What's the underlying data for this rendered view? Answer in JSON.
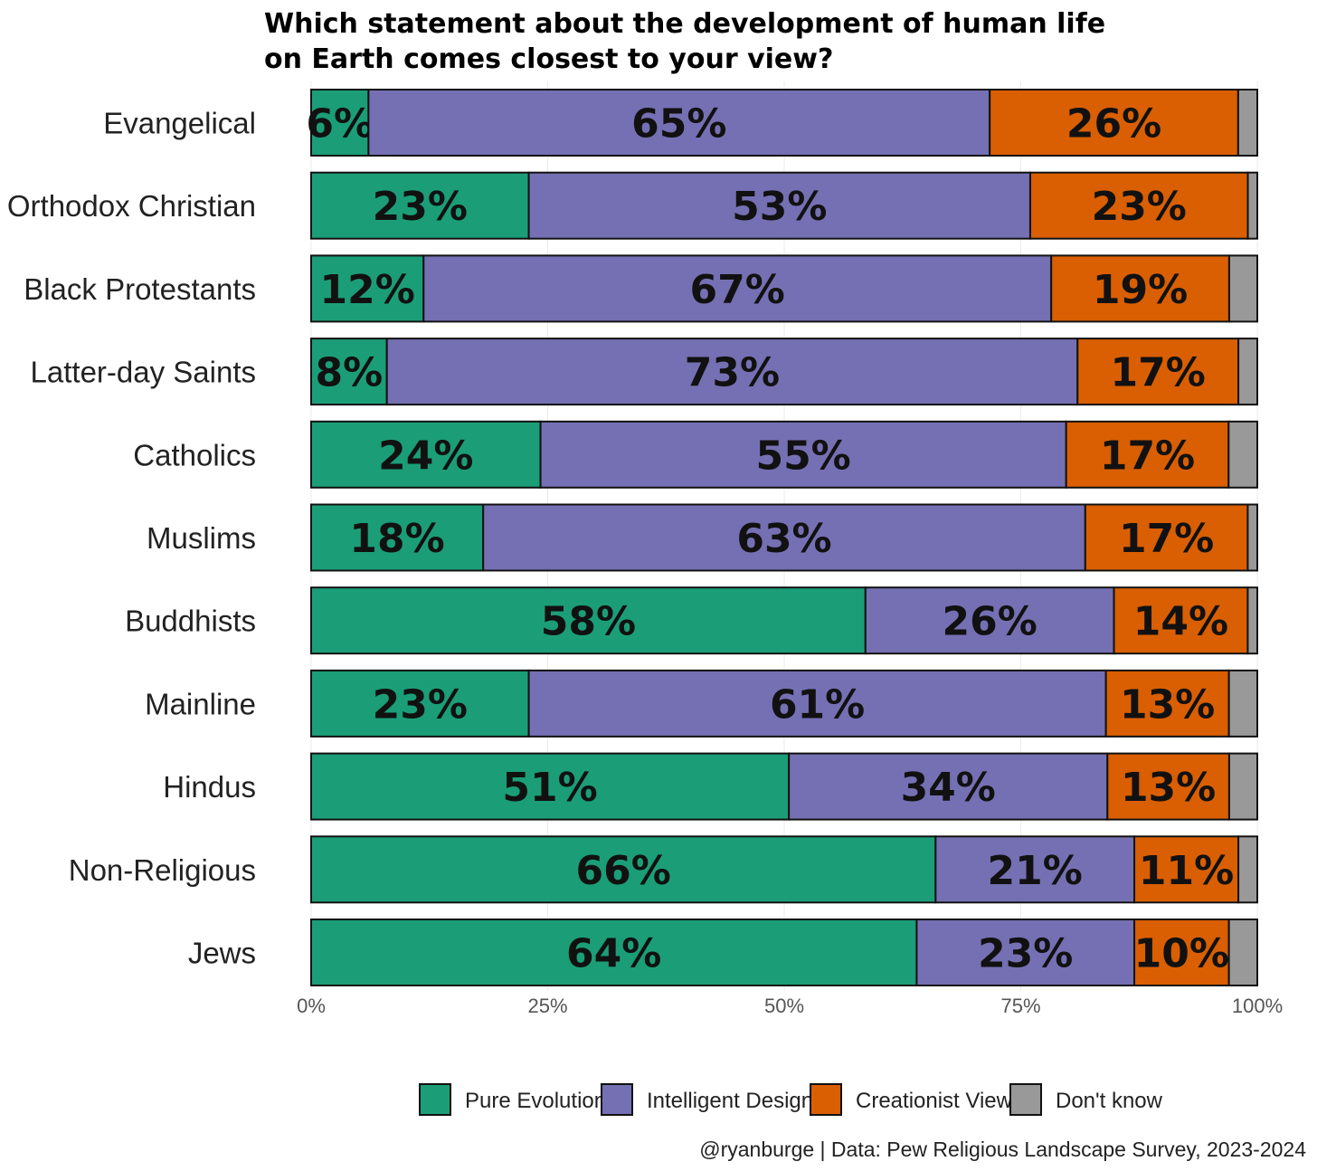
{
  "chart_data": {
    "type": "bar",
    "orientation": "horizontal",
    "stacked": true,
    "title_lines": [
      "Which statement about the development of human life",
      "on Earth comes closest to your view?"
    ],
    "categories": [
      "Evangelical",
      "Orthodox Christian",
      "Black Protestants",
      "Latter-day Saints",
      "Catholics",
      "Muslims",
      "Buddhists",
      "Mainline",
      "Hindus",
      "Non-Religious",
      "Jews"
    ],
    "series": [
      {
        "name": "Pure Evolution",
        "color": "#1b9e77",
        "values": [
          6,
          23,
          12,
          8,
          24,
          18,
          58,
          23,
          51,
          66,
          64
        ],
        "labels": [
          "6%",
          "23%",
          "12%",
          "8%",
          "24%",
          "18%",
          "58%",
          "23%",
          "51%",
          "66%",
          "64%"
        ]
      },
      {
        "name": "Intelligent Design",
        "color": "#7570b3",
        "values": [
          65,
          53,
          67,
          73,
          55,
          63,
          26,
          61,
          34,
          21,
          23
        ],
        "labels": [
          "65%",
          "53%",
          "67%",
          "73%",
          "55%",
          "63%",
          "26%",
          "61%",
          "34%",
          "21%",
          "23%"
        ]
      },
      {
        "name": "Creationist View",
        "color": "#d95f02",
        "values": [
          26,
          23,
          19,
          17,
          17,
          17,
          14,
          13,
          13,
          11,
          10
        ],
        "labels": [
          "26%",
          "23%",
          "19%",
          "17%",
          "17%",
          "17%",
          "14%",
          "13%",
          "13%",
          "11%",
          "10%"
        ]
      },
      {
        "name": "Don't know",
        "color": "#999999",
        "values": [
          2,
          1,
          3,
          2,
          3,
          1,
          1,
          3,
          3,
          2,
          3
        ],
        "labels": []
      }
    ],
    "xlim": [
      0,
      100
    ],
    "xticks": [
      "0%",
      "25%",
      "50%",
      "75%",
      "100%"
    ],
    "grid": true,
    "legend_position": "bottom",
    "caption": "@ryanburge | Data: Pew Religious Landscape Survey, 2023-2024"
  }
}
